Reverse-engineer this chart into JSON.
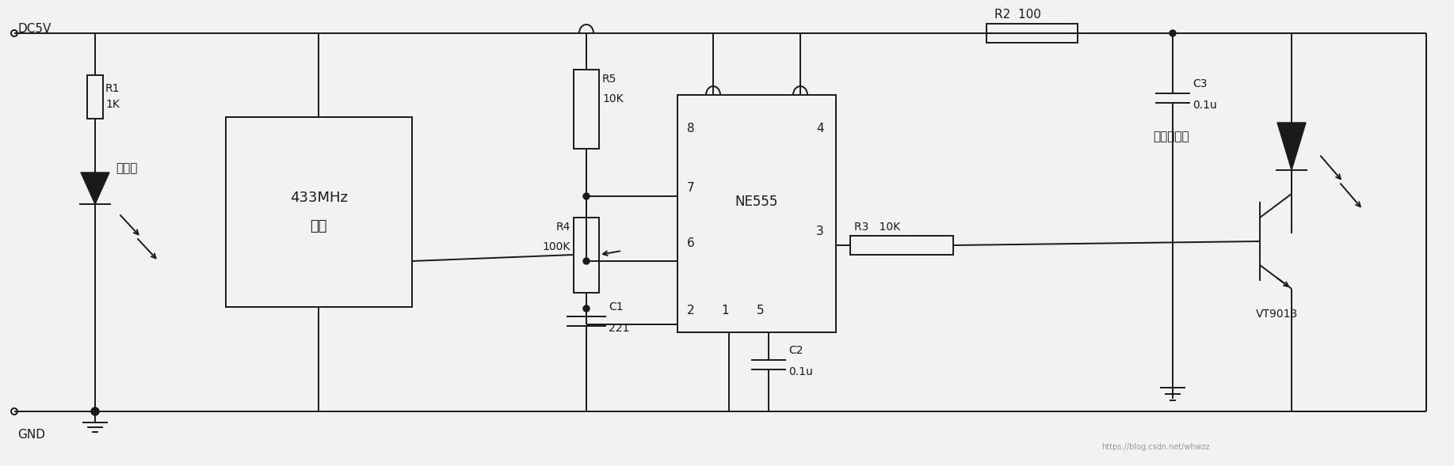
{
  "bg_color": "#f2f2f2",
  "line_color": "#1a1a1a",
  "lw": 1.4,
  "font_size": 10,
  "labels": {
    "dc5v": "DC5V",
    "gnd": "GND",
    "r1": "R1",
    "r1_val": "1K",
    "r2": "R2  100",
    "r3": "R3   10K",
    "r4": "R4",
    "r4_val": "100K",
    "r5": "R5",
    "r5_val": "10K",
    "c1": "C1",
    "c1_val": "221",
    "c2": "C2",
    "c2_val": "0.1u",
    "c3": "C3",
    "c3_val": "0.1u",
    "ne555": "NE555",
    "module_line1": "433MHz",
    "module_line2": "模块",
    "led_label": "指示灯",
    "ir_label": "红外发射管",
    "vt9013": "VT9013",
    "pin8": "8",
    "pin4": "4",
    "pin7": "7",
    "pin6": "6",
    "pin3": "3",
    "pin2": "2",
    "pin1": "1",
    "pin5": "5",
    "watermark": "https://blog.csdn.net/whwzz"
  }
}
